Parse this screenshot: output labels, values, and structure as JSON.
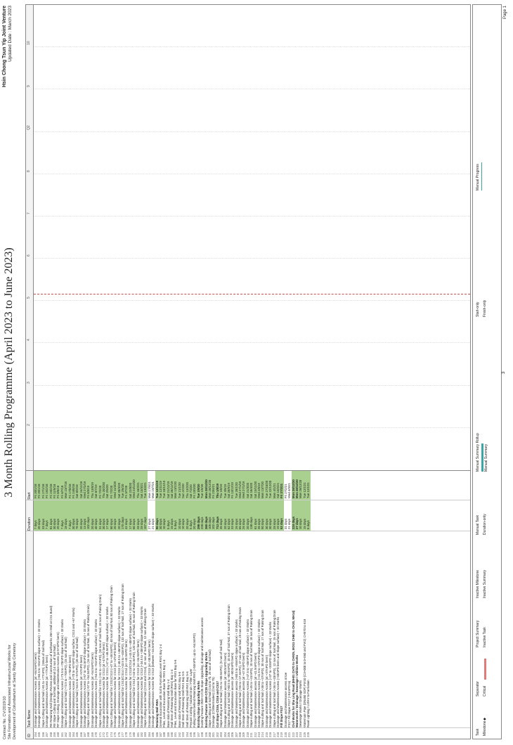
{
  "header": {
    "contract_no": "Contract No. CV/2019/10",
    "contract_desc_1": "Site Formation and Associated Infrastructural Works for",
    "contract_desc_2": "Development of Columbarium at Sandy Ridge Cemetery",
    "title": "3 Month Rolling Programme (April 2023 to June 2023)",
    "company": "Hsin Chong Tsun Yip Joint Venture",
    "updated": "Updated Date : March 2023"
  },
  "columns": {
    "id": "ID",
    "name": "Task Name",
    "duration": "Duration",
    "start": "Start"
  },
  "timescale": [
    "2",
    "3",
    "4",
    "5",
    "6",
    "7",
    "8",
    "Q2",
    "9",
    "10"
  ],
  "rows": [
    {
      "id": "154",
      "name": "Drainage and Maintenance Access (at +84.5mPD berm)",
      "dur": "7 days",
      "start": "Fri 20/1/18"
    },
    {
      "id": "155",
      "name": "Drainage and Maintenance Access (+84.5 to +81mPD slope surface) + 33 Works",
      "dur": "20 days",
      "start": "Fri 20/1/18"
    },
    {
      "id": "156",
      "name": "Slope Cutting and Soil Nail (+81 to +77mPD), (18nos of Soil Nail)",
      "dur": "33 days",
      "start": "Fri 27/1/18"
    },
    {
      "id": "157",
      "name": "Drainage and Maintenance Access (at +77mPD berm)",
      "dur": "7 days",
      "start": "Fri 15/2/18"
    },
    {
      "id": "158",
      "name": "RE Retaining Wall (Design Review and Construction of Earthworks 20m Wall at CS1 Bund)",
      "dur": "81 days",
      "start": "Fri 23/2/18"
    },
    {
      "id": "159",
      "name": "RE Slope Cutting and Soil Nail, additional (14 nos of Soil Nail)",
      "dur": "30 days",
      "start": "Fri 11/5/18"
    },
    {
      "id": "160",
      "name": "RF Slope Cutting, Drainage and Maintenance Access (at 57mPD berm)",
      "dur": "20 days",
      "start": "Fri 8/6/18"
    },
    {
      "id": "161",
      "name": "Drainage and Maintenance Access (+73.5 to +70mPD slope surface) + 33 Works",
      "dur": "7 days",
      "start": "Fri 6/7/18"
    },
    {
      "id": "162",
      "name": "Slope Cutting and Soil Nail (+73.5 to +70mPD), (15 nos of Soil Nail)",
      "dur": "18 days",
      "start": "Mon 23/7/18"
    },
    {
      "id": "163",
      "name": "Drainage and Maintenance Access (at +70mPD berm)",
      "dur": "7 days",
      "start": "Fri 17/8/18"
    },
    {
      "id": "164",
      "name": "Drainage and Maintenance Access (+70 to +67mPD slope surface, CS13 and +67 Works)",
      "dur": "30 days",
      "start": "Fri 24/8/18"
    },
    {
      "id": "165",
      "name": "Slope Cutting and Soil Nail (+64.5 to +57mPD), (20 nos of Soil Nail)",
      "dur": "70 days",
      "start": "Sat 8/9/18"
    },
    {
      "id": "166",
      "name": "Drainage and Maintenance Access (at +57mPD berm)",
      "dur": "20 days",
      "start": "Sat 24/11/18"
    },
    {
      "id": "167",
      "name": "Drainage and Maintenance Access (+57 to +54.5mPD slope surface) + 33 Works",
      "dur": "13 days",
      "start": "Wed 27/2/19"
    },
    {
      "id": "168",
      "name": "Slope Cutting and Soil Nail (+57 to +54.5mPD), (16 nos of Soil Nail, 16 nos of Raking Drain)",
      "dur": "102 days",
      "start": "Fri 8/3/19"
    },
    {
      "id": "169",
      "name": "Drainage and Maintenance Access (at +54.5mPD berm)",
      "dur": "20 days",
      "start": "Thu 13/6/19"
    },
    {
      "id": "170",
      "name": "Drainage and Maintenance Access (+54.5 to +51mPD slope surface) + 33 Works",
      "dur": "40 days",
      "start": "Sat 6/7/19"
    },
    {
      "id": "171",
      "name": "Slope Cutting and Soil Nail for CS11 (+51 to +47mPD), (18 nos of Soil Nail, 18 nos of Raking Drain)",
      "dur": "31 days",
      "start": "Fri 7/2/20"
    },
    {
      "id": "172",
      "name": "Drainage and Maintenance Access for CS11 (at +47mPD berm)",
      "dur": "30 days",
      "start": "Thu 20/2/20"
    },
    {
      "id": "173",
      "name": "Drainage and Maintenance Access for CS11 (+47 to +48.5mPD slope surface) + 33 Works",
      "dur": "17 days",
      "start": "Sat 2/5/20"
    },
    {
      "id": "174",
      "name": "Slope Cutting and Soil Nail for CS11/CS13 (+47 to +48.5mPD), 40 nos of Soil Nail, 50 nos of Raking Drain",
      "dur": "60 days",
      "start": "Fri 7/2/20"
    },
    {
      "id": "175",
      "name": "Drainage and Maintenance Access for CS13 (at +47mPD berm)",
      "dur": "20 days",
      "start": "Wed 11/3/20"
    },
    {
      "id": "176",
      "name": "Drainage and Maintenance Access for CS13 (+48.5 to +46mPD slope surface) + 33 Works",
      "dur": "20 days",
      "start": "Sat 28/3/20"
    },
    {
      "id": "177",
      "name": "Slope Cutting and Soil Nail for CS13/CS14 (+43.5 to +40mPD), 132 nos of Soil Nail, 17 nos of Raking Drain",
      "dur": "170 days",
      "start": "Tue 2/6/20"
    },
    {
      "id": "178",
      "name": "Drainage and Maintenance Access for CS14 (at +43.5mPD berm)",
      "dur": "42 days",
      "start": "Fri 3/7/20"
    },
    {
      "id": "179",
      "name": "Drainage and Maintenance Access for CS13/CS14 (+43.5 to +40mPD slope surface) + 33 Works",
      "dur": "17 days",
      "start": "Sat 22/8/20"
    },
    {
      "id": "180",
      "name": "Slope Cutting and Soil Nail for CS13 (+43 to +34.5mPD), 120 nos of Soil Nail, 55 nos of Raking Drain",
      "dur": "60 days",
      "start": "Wed 23/12/20"
    },
    {
      "id": "181",
      "name": "Drainage and Maintenance Access for CS13 (at +34.5mPD berm)",
      "dur": "28 days",
      "start": "Thu 18/2/21"
    },
    {
      "id": "182",
      "name": "Drainage and Maintenance Access for CS13 (+34.5 to +30mPD slope surface) + 33 Works",
      "dur": "28 days",
      "start": "Sat 13/3/21"
    },
    {
      "id": "183",
      "name": "Slope Cutting and Soil Nail (CS13 and CS14), 42 nos of Soil Nail, 12 nos of Raking Drain",
      "dur": "107 days",
      "start": "Tue 13/4/21"
    },
    {
      "id": "184",
      "name": "Drainage and Maintenance Access for CS13 (at +30.5mPD berm)",
      "dur": "27 days",
      "start": "Mon 17/5/21",
      "sum": true
    },
    {
      "id": "185",
      "name": "Drainage and Maintenance Access for CS13 (between +34.5mPD slope surface) + 33 Works",
      "dur": "21 days",
      "start": "Mon 19/7/21",
      "sum": true
    },
    {
      "id": "186",
      "name": "Retaining Wall RW1",
      "dur": "90 days",
      "start": "Tue 12/11/19",
      "bold": true
    },
    {
      "id": "187",
      "name": "General Excavation with Soil to Formation Level RW1 Bay 1-4",
      "dur": "30 days",
      "start": "Tue 12/11/19"
    },
    {
      "id": "188",
      "name": "Piles, Level and Excavation Base for RW1 Bay 1-4",
      "dur": "10 days",
      "start": "Tue 10/12/19"
    },
    {
      "id": "189",
      "name": "Base slab of Retaining Wall Bay 1-4",
      "dur": "5 days",
      "start": "Sat 21/12/19"
    },
    {
      "id": "190",
      "name": "Wall Stem of Retaining Wall (RW1) Bay 1-4",
      "dur": "15 days",
      "start": "Sat 28/12/19"
    },
    {
      "id": "191",
      "name": "Piles, Level and Excavation Base for RW1 Bay 5-6",
      "dur": "5 days",
      "start": "Mon 13/1/20"
    },
    {
      "id": "192",
      "name": "Base slab of Retaining Wall RW1 Bay 5-6",
      "dur": "10 days",
      "start": "Tue 21/1/20"
    },
    {
      "id": "193",
      "name": "Wall Stem of Retaining Wall RW1 Bay 5-6",
      "dur": "10 days",
      "start": "Sun 2/2/20"
    },
    {
      "id": "194",
      "name": "Wall Stem of Retaining Wall RW1 Bay 5-6",
      "dur": "20 days",
      "start": "Thu 13/2/20"
    },
    {
      "id": "195",
      "name": "Precast Cutting / Subsoil Drain / Filter Layer",
      "dur": "5 days",
      "start": "Sat 7/3/20"
    },
    {
      "id": "196",
      "name": "Falling Works behind Retaining Wall RW1 (+53mPD, up to +54.5mPD)",
      "dur": "20 days",
      "start": "Fri 13/3/20"
    },
    {
      "id": "197",
      "name": "Existing Slope Upgrading Works",
      "dur": "298 days",
      "start": "Tue 1/9/20",
      "bold": true
    },
    {
      "id": "198",
      "name": "Existing Feature 3NW-C/C35 Slope Upgrading, drainage and maintenance access",
      "dur": "298 days",
      "start": "Tue 1/9/20"
    },
    {
      "id": "199",
      "name": "Existing Feature 3NW-C/C35 Slope Upgrading Works",
      "dur": "260 days",
      "start": "Mon 28/12/20",
      "bold": true
    },
    {
      "id": "200",
      "name": "Slope Cutting and Soil Nail (Cnd to 7b, 29 nos of Soil Nail)",
      "dur": "105 days",
      "start": "Mon 28/12/20"
    },
    {
      "id": "201",
      "name": "Drainage (CS/Bermsides) (Cnd to 7b)",
      "dur": "102 days",
      "start": "Fri 23/4/21"
    },
    {
      "id": "202",
      "name": "Cut Slope CS16, CS16 and CS17",
      "dur": "713 days",
      "start": "Thu 1/8/19",
      "bold": true
    },
    {
      "id": "203",
      "name": "Slope cutting and Soil Nail (+81 to +80.5mPD), (5 nos of Soil Nail)",
      "dur": "35 days",
      "start": "Thu 1/8/19"
    },
    {
      "id": "204",
      "name": "Drainage and Maintenance access (at +80.5mPD berm)",
      "dur": "20 days",
      "start": "Tue 3/9/19"
    },
    {
      "id": "205",
      "name": "Slope cutting and Soil Nail (+80.5 to +80.5mPD), 10 nos of Soil Nail, 37 nos of Raking Drain",
      "dur": "62 days",
      "start": "Sat 28/9/19"
    },
    {
      "id": "206",
      "name": "Drainage and Maintenance access (at +80.5mPD berm)",
      "dur": "33 days",
      "start": "Fri 13/12/19"
    },
    {
      "id": "207",
      "name": "Drainage and Maintenance access (+80.5 to +55mPD slope surface) + 33 Works",
      "dur": "26 days",
      "start": "Tue 28/1/20"
    },
    {
      "id": "208",
      "name": "Slope cutting and Soil Nail (+55 to +47.5mPD), 37 nos of Soil Nail, 25 nos of Raking Drain",
      "dur": "65 days",
      "start": "Wed 27/1/19"
    },
    {
      "id": "209",
      "name": "Drainage and Maintenance access (at +47.5mPD berm)",
      "dur": "26 days",
      "start": "Wed 27/1/19"
    },
    {
      "id": "210",
      "name": "Drainage and Maintenance Access (+47.5 to +45mPD slope surface) + 33 Works",
      "dur": "20 days",
      "start": "Sat 21/3/20"
    },
    {
      "id": "211",
      "name": "Slope cutting and Soil Nail (+45 to +41mPD), 10 nos of Soil Nail, 18 nos of Raking Drain",
      "dur": "138 days",
      "start": "Sat 18/4/20"
    },
    {
      "id": "212",
      "name": "Drainage and Maintenance access (at +41.5mPD berm)",
      "dur": "61 days",
      "start": "Sat 13/11/20"
    },
    {
      "id": "213",
      "name": "Drainage and Maintenance Access (+41.5 to +37mPD slope surface) + 33 Works",
      "dur": "35 days",
      "start": "Wed 2/6/19"
    },
    {
      "id": "214",
      "name": "Slope cutting and Soil Nail (+38 to +37mPD), 30 nos of Soil Nail, 17 nos of Raking Drain",
      "dur": "90 days",
      "start": "Mon 13/7/20"
    },
    {
      "id": "215",
      "name": "Drainage and Maintenance Access (at +37mPD berm)",
      "dur": "30 days",
      "start": "Tue 27/10/20"
    },
    {
      "id": "216",
      "name": "Drainage and Maintenance Access (+37 to +33mPD slope surface) + 33 Works",
      "dur": "30 days",
      "start": "Tue 22/12/20"
    },
    {
      "id": "217",
      "name": "Slope cutting and Soil Nail (+36 to +33mPD), 12 nos of Soil Nail, 15 nos of Raking Drain",
      "dur": "28 days",
      "start": "Mon 4/1/21"
    },
    {
      "id": "218",
      "name": "Drainage and Maintenance Access (+33mPD berm and Slope surface) + 33 Works",
      "dur": "19 days",
      "start": "Sat 13/2/21"
    },
    {
      "id": "219",
      "name": "Fill Slope FS17",
      "dur": "52 days",
      "start": "Fri 27/2/21",
      "bold": true
    },
    {
      "id": "220",
      "name": "Drainage and Maintenance access at toe",
      "dur": "31 days",
      "start": "Fri 27/2/21",
      "sum": true
    },
    {
      "id": "221",
      "name": "FS17 Fill Slope FS17 (+51mPD to)",
      "dur": "21 days",
      "start": "Wed 4/3/21",
      "sum": true
    },
    {
      "id": "222",
      "name": "Civil Works for Sha Ling Road (MH01 CH70 to CH925, MO11 CH80 to CH20, MH14)",
      "dur": "224 days",
      "start": "Mon 28/12/20",
      "bold": true
    },
    {
      "id": "223",
      "name": "Waterworks / Drainage / Sewerage / Utilities Works",
      "dur": "27 days",
      "start": "Mon 28/12/20",
      "bold": true
    },
    {
      "id": "224",
      "name": "Sewerage Works / Drainage Works",
      "dur": "10 days",
      "start": "Mon 28/12/20"
    },
    {
      "id": "225",
      "name": "Watermain Pipe (DN450 SDP) FW10 (C3+000 to 0+060 and FW2) CH570 to 618",
      "dur": "15 days",
      "start": "Tue 12/1/21"
    },
    {
      "id": "226",
      "name": "Road Lighting / LV/HV to Formation",
      "dur": "6 days",
      "start": "Tue 12/1/21"
    }
  ],
  "legend": {
    "task": "Task",
    "milestone": "Milestone",
    "split": "Separator",
    "critical": "Critical",
    "project_summary": "Project Summary",
    "inactive_task": "Inactive Task",
    "inactive_milestone": "Inactive Milestone",
    "inactive_summary": "Inactive Summary",
    "manual_task": "Manual Task",
    "duration_only": "Duration-only",
    "manual_summary_rollup": "Manual Summary Rollup",
    "manual_summary": "Manual Summary",
    "start_only": "Start-only",
    "finish_only": "Finish-only",
    "manual_progress": "Manual Progress",
    "center_number": "3",
    "page": "Page 1"
  },
  "colors": {
    "green_cell": "#a9d08e",
    "today_line": "#c0504d",
    "critical_bar": "#e07b7b",
    "summary_bar": "#3aa6a6"
  }
}
